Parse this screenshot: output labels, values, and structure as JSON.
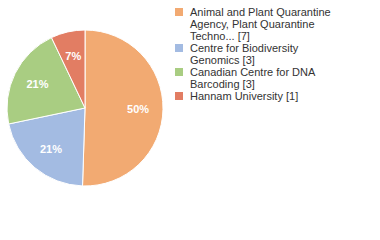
{
  "chart_data": {
    "type": "pie",
    "categories": [
      "Animal and Plant Quarantine Agency, Plant Quarantine Techno... [7]",
      "Centre for Biodiversity Genomics [3]",
      "Canadian Centre for DNA Barcoding [3]",
      "Hannam University [1]"
    ],
    "values": [
      50,
      21,
      21,
      7
    ],
    "value_labels": [
      "50%",
      "21%",
      "21%",
      "7%"
    ],
    "colors": [
      "#f2aa72",
      "#a3bbe2",
      "#a9cd82",
      "#e27d63"
    ],
    "data_labels": true
  }
}
